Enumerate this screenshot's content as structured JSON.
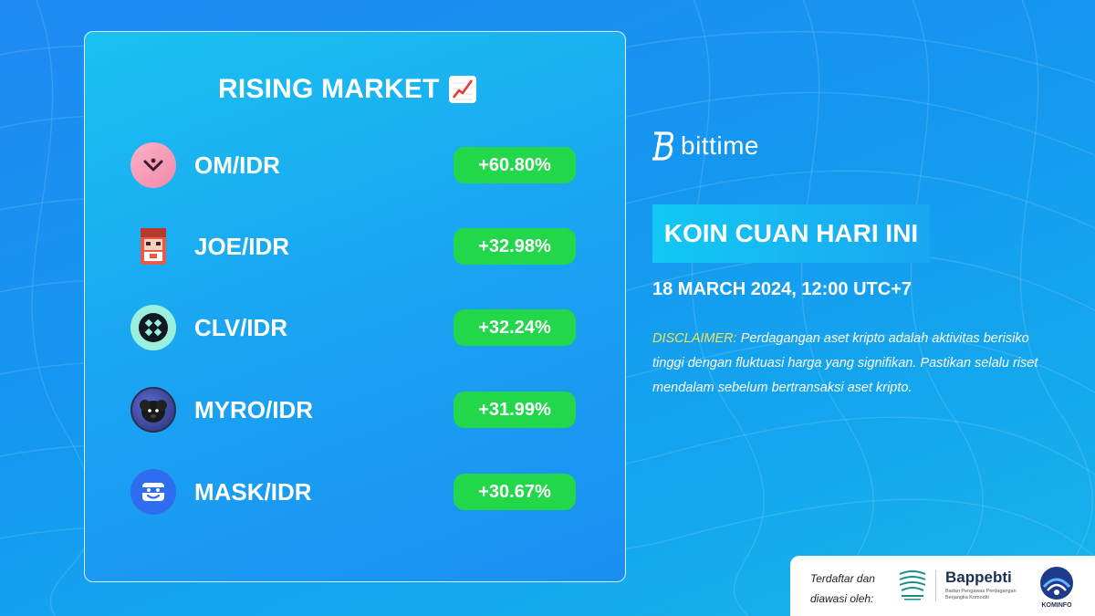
{
  "colors": {
    "background": "#1a96f0",
    "percent_badge": "#22d84a",
    "disclaimer_label": "#f3e15a"
  },
  "card": {
    "title": "RISING MARKET",
    "title_icon": "chart-increasing-icon",
    "coins": [
      {
        "pair": "OM/IDR",
        "change": "+60.80%",
        "icon": "om-coin-icon"
      },
      {
        "pair": "JOE/IDR",
        "change": "+32.98%",
        "icon": "joe-coin-icon"
      },
      {
        "pair": "CLV/IDR",
        "change": "+32.24%",
        "icon": "clv-coin-icon"
      },
      {
        "pair": "MYRO/IDR",
        "change": "+31.99%",
        "icon": "myro-coin-icon"
      },
      {
        "pair": "MASK/IDR",
        "change": "+30.67%",
        "icon": "mask-coin-icon"
      }
    ]
  },
  "brand": {
    "name": "bittime",
    "icon": "bittime-logo-icon"
  },
  "headline": "KOIN CUAN HARI INI",
  "datetime": "18 MARCH 2024, 12:00 UTC+7",
  "disclaimer": {
    "label": "DISCLAIMER:",
    "text": " Perdagangan aset kripto adalah aktivitas berisiko tinggi dengan fluktuasi harga yang signifikan. Pastikan selalu riset mendalam sebelum bertransaksi aset kripto."
  },
  "footer": {
    "registered_line1": "Terdaftar dan",
    "registered_line2": "diawasi oleh:",
    "bappebti": "Bappebti",
    "bappebti_sub": "Badan Pengawas Perdagangan Berjangka Komoditi",
    "kominfo": "KOMINFO"
  }
}
